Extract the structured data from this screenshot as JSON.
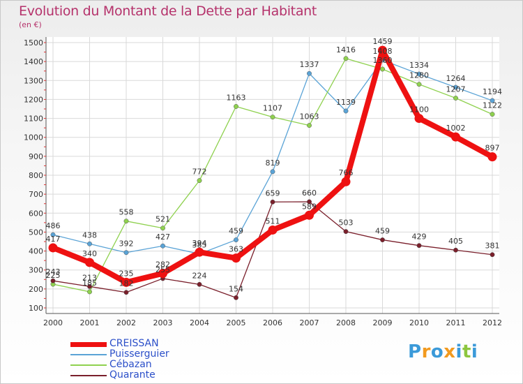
{
  "title": "Evolution du Montant de la Dette par Habitant",
  "subtitle": "(en €)",
  "chart_data": {
    "type": "line",
    "title": "Evolution du Montant de la Dette par Habitant",
    "ylabel": "(en €)",
    "xlabel": "",
    "x": [
      "2000",
      "2001",
      "2002",
      "2003",
      "2004",
      "2005",
      "2006",
      "2007",
      "2008",
      "2009",
      "2010",
      "2011",
      "2012"
    ],
    "ylim": [
      100,
      1500
    ],
    "yticks": [
      100,
      200,
      300,
      400,
      500,
      600,
      700,
      800,
      900,
      1000,
      1100,
      1200,
      1300,
      1400,
      1500
    ],
    "grid": true,
    "legend_position": "bottom-left",
    "series": [
      {
        "name": "CREISSAN",
        "color": "#ee1111",
        "emphasis": true,
        "values": [
          417,
          340,
          235,
          282,
          394,
          363,
          511,
          589,
          766,
          1459,
          1100,
          1002,
          897
        ]
      },
      {
        "name": "Puisserguier",
        "color": "#5aa3d6",
        "values": [
          486,
          438,
          392,
          427,
          385,
          459,
          819,
          1337,
          1139,
          1408,
          1334,
          1264,
          1194
        ]
      },
      {
        "name": "Cébazan",
        "color": "#8fd14f",
        "values": [
          225,
          185,
          558,
          521,
          772,
          1163,
          1107,
          1063,
          1416,
          1360,
          1280,
          1207,
          1122
        ]
      },
      {
        "name": "Quarante",
        "color": "#7a1f2b",
        "values": [
          243,
          213,
          182,
          255,
          224,
          154,
          659,
          660,
          503,
          459,
          429,
          405,
          381
        ]
      }
    ]
  },
  "logo": {
    "text": "Proxiti",
    "letters": [
      "P",
      "r",
      "o",
      "x",
      "i",
      "t",
      "i"
    ],
    "colors": [
      "#3b9ad9",
      "#f29a1f",
      "#3b9ad9",
      "#f29a1f",
      "#3b9ad9",
      "#8cc63f",
      "#3b9ad9"
    ]
  }
}
